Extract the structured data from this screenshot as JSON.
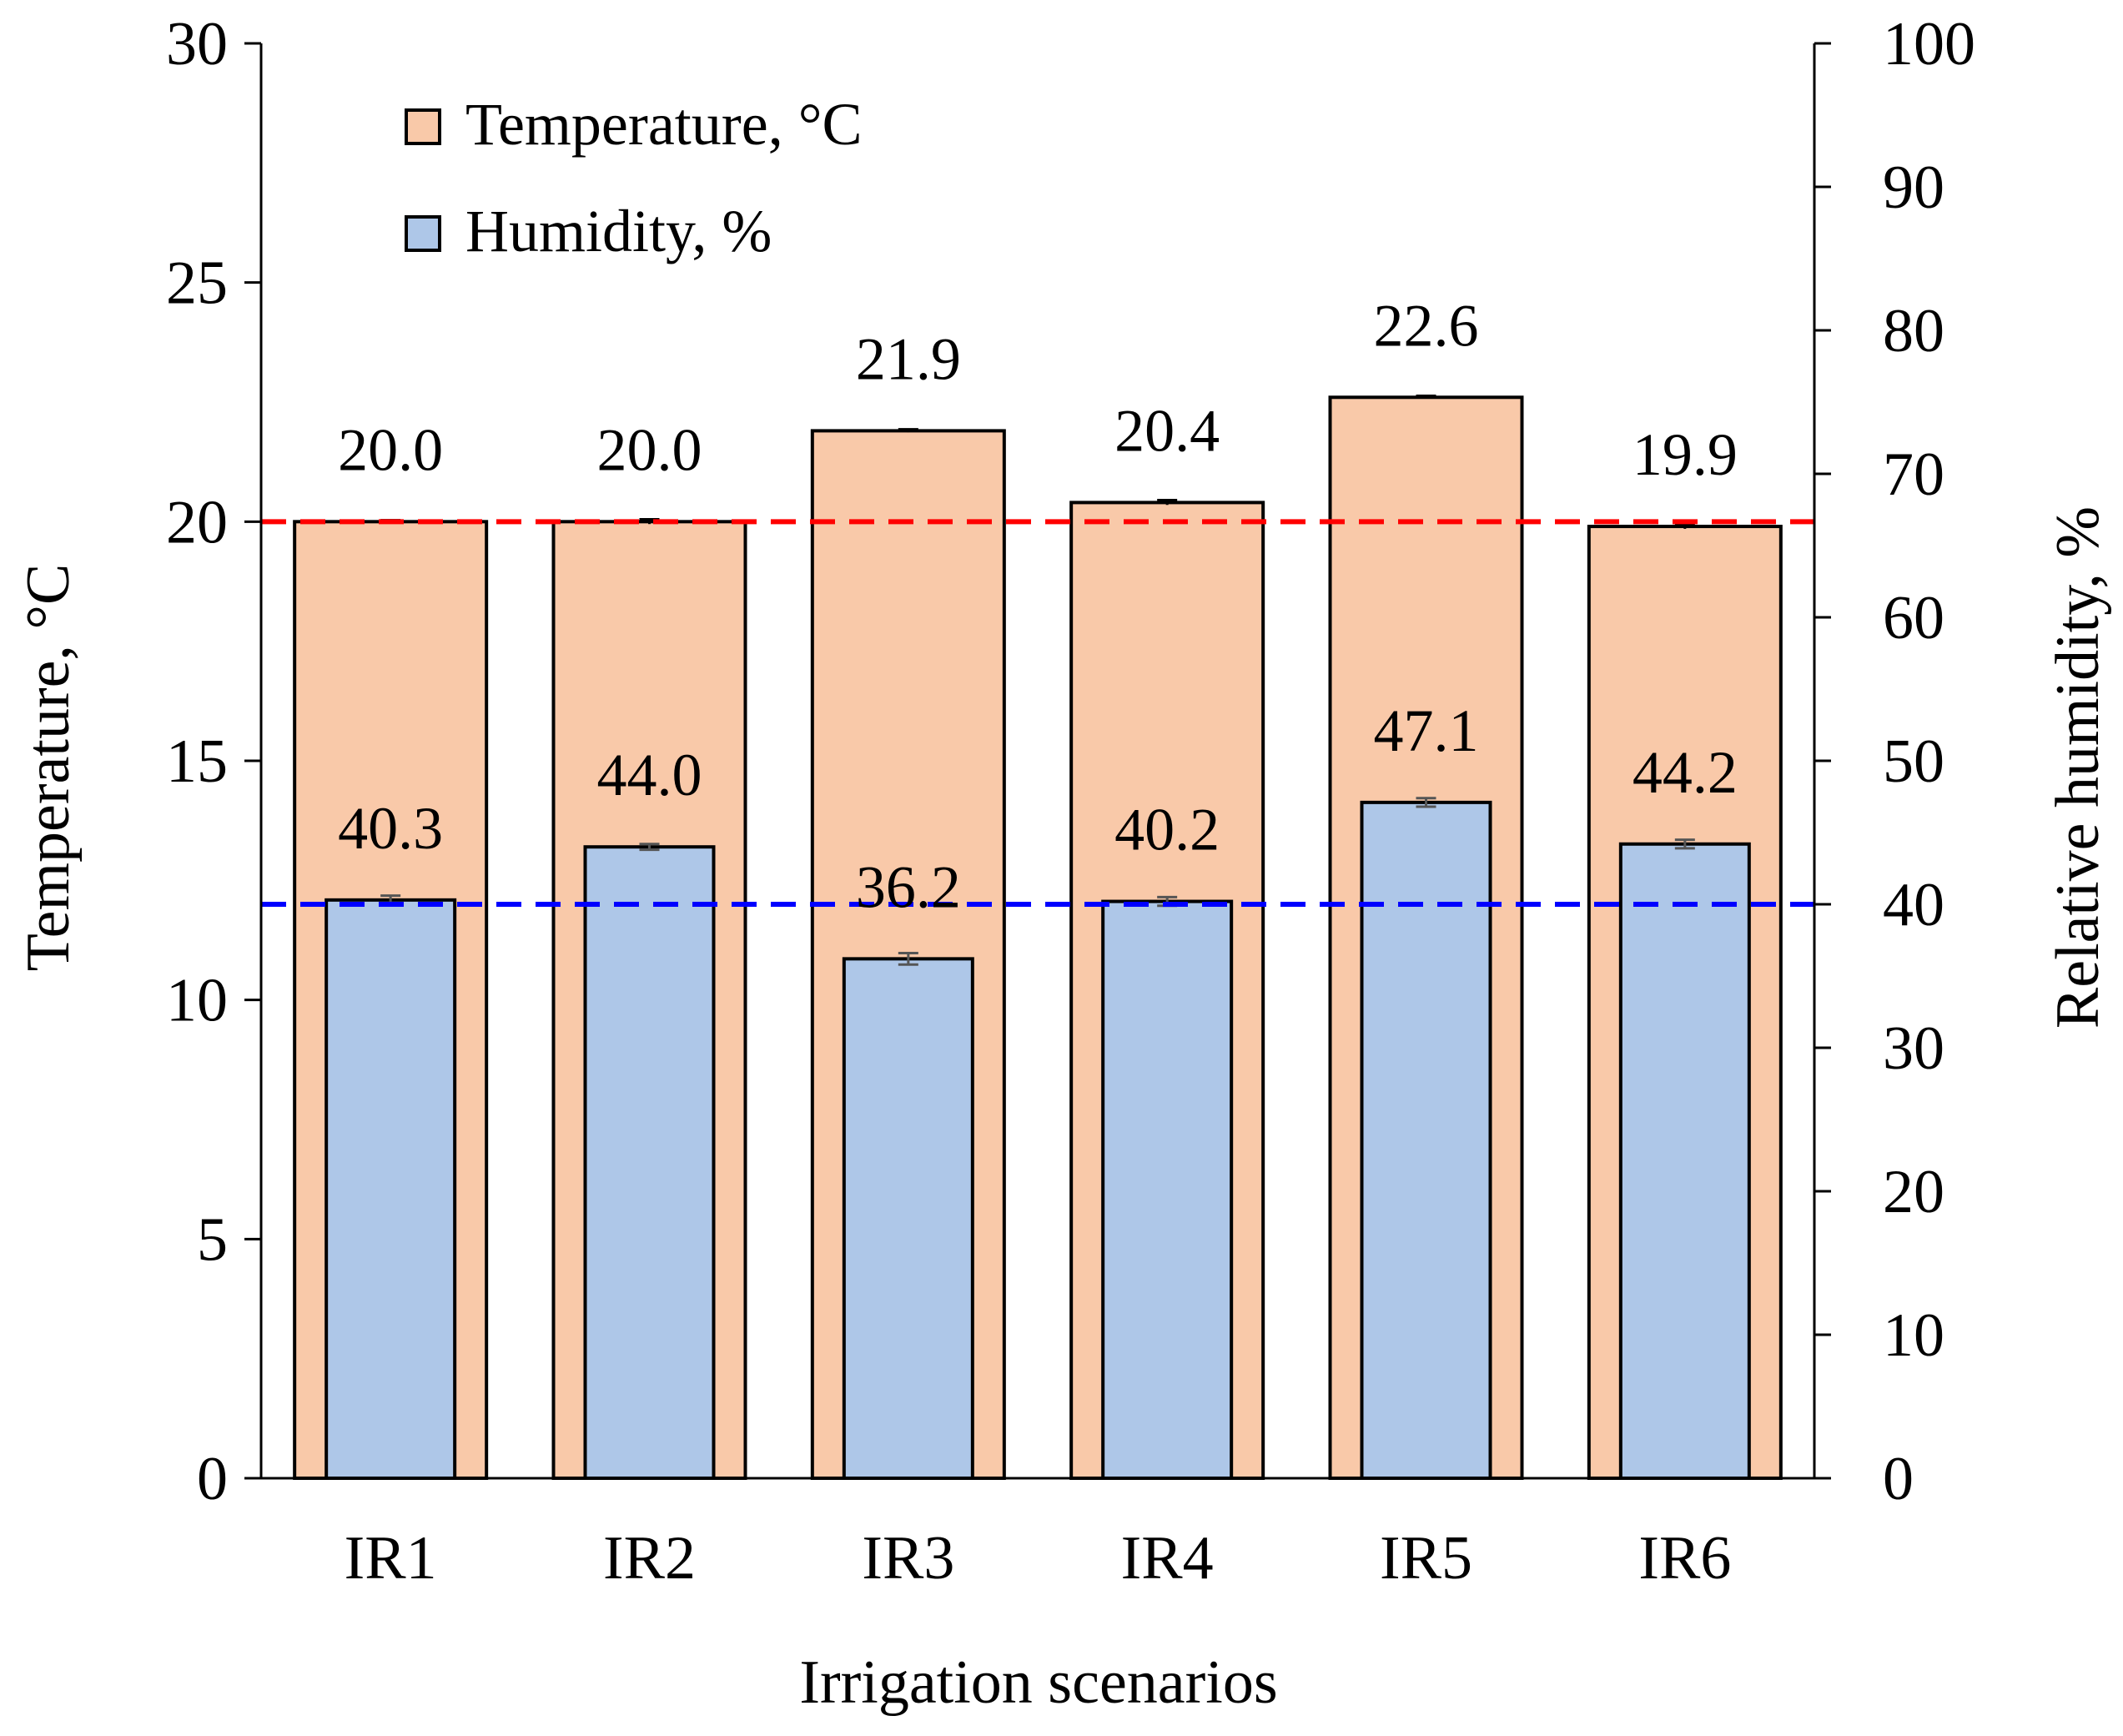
{
  "chart_data": {
    "type": "bar",
    "categories": [
      "IR1",
      "IR2",
      "IR3",
      "IR4",
      "IR5",
      "IR6"
    ],
    "series": [
      {
        "name": "Temperature, °C",
        "axis": "left",
        "values": [
          20.0,
          20.0,
          21.9,
          20.4,
          22.6,
          19.9
        ],
        "labels": [
          "20.0",
          "20.0",
          "21.9",
          "20.4",
          "22.6",
          "19.9"
        ],
        "error": [
          0.03,
          0.05,
          0.03,
          0.05,
          0.03,
          0.05
        ],
        "color": "#F9C9A9"
      },
      {
        "name": "Humidity, %",
        "axis": "right",
        "values": [
          40.3,
          44.0,
          36.2,
          40.2,
          47.1,
          44.2
        ],
        "labels": [
          "40.3",
          "44.0",
          "36.2",
          "40.2",
          "47.1",
          "44.2"
        ],
        "error": [
          0.3,
          0.2,
          0.4,
          0.3,
          0.3,
          0.3
        ],
        "color": "#AEC7E8"
      }
    ],
    "reference_lines": [
      {
        "axis": "left",
        "value": 20,
        "color": "#FF0000",
        "style": "dashed"
      },
      {
        "axis": "right",
        "value": 40,
        "color": "#0000FF",
        "style": "dashed"
      }
    ],
    "xlabel": "Irrigation scenarios",
    "ylabel_left": "Temperature, °C",
    "ylabel_right": "Relative humidity, %",
    "ylim_left": [
      0,
      30
    ],
    "ylim_right": [
      0,
      100
    ],
    "yticks_left": [
      "0",
      "5",
      "10",
      "15",
      "20",
      "25",
      "30"
    ],
    "yticks_right": [
      "0",
      "10",
      "20",
      "30",
      "40",
      "50",
      "60",
      "70",
      "80",
      "90",
      "100"
    ],
    "legend": "top-left",
    "grid": false
  }
}
